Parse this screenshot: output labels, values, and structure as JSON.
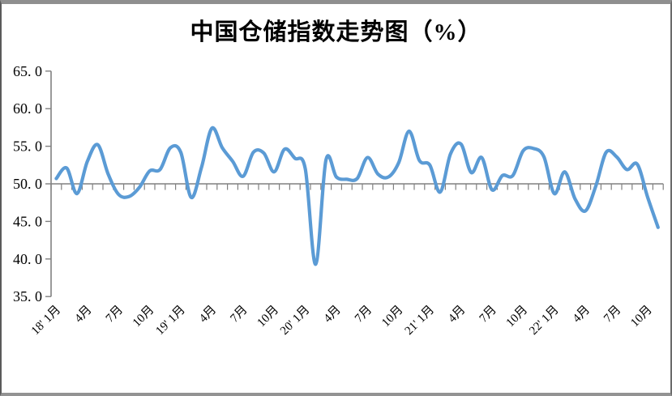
{
  "title": "中国仓储指数走势图（%）",
  "y_axis": {
    "tick_labels": [
      "65. 0",
      "60. 0",
      "55. 0",
      "50. 0",
      "45. 0",
      "40. 0",
      "35. 0"
    ],
    "min": 35,
    "max": 65,
    "step": 5
  },
  "x_axis": {
    "tick_labels": [
      "18' 1月",
      "4月",
      "7月",
      "10月",
      "19' 1月",
      "4月",
      "7月",
      "10月",
      "20' 1月",
      "4月",
      "7月",
      "10月",
      "21' 1月",
      "4月",
      "7月",
      "10月",
      "22' 1月",
      "4月",
      "7月",
      "10月"
    ]
  },
  "colors": {
    "line": "#5B9BD5",
    "axis": "#808080",
    "text": "#000000",
    "frame": "#8f8f8f"
  },
  "chart_data": {
    "type": "line",
    "title": "中国仓储指数走势图（%）",
    "x": [
      "2018-01",
      "2018-02",
      "2018-03",
      "2018-04",
      "2018-05",
      "2018-06",
      "2018-07",
      "2018-08",
      "2018-09",
      "2018-10",
      "2018-11",
      "2018-12",
      "2019-01",
      "2019-02",
      "2019-03",
      "2019-04",
      "2019-05",
      "2019-06",
      "2019-07",
      "2019-08",
      "2019-09",
      "2019-10",
      "2019-11",
      "2019-12",
      "2020-01",
      "2020-02",
      "2020-03",
      "2020-04",
      "2020-05",
      "2020-06",
      "2020-07",
      "2020-08",
      "2020-09",
      "2020-10",
      "2020-11",
      "2020-12",
      "2021-01",
      "2021-02",
      "2021-03",
      "2021-04",
      "2021-05",
      "2021-06",
      "2021-07",
      "2021-08",
      "2021-09",
      "2021-10",
      "2021-11",
      "2021-12",
      "2022-01",
      "2022-02",
      "2022-03",
      "2022-04",
      "2022-05",
      "2022-06",
      "2022-07",
      "2022-08",
      "2022-09",
      "2022-10",
      "2022-11"
    ],
    "values": [
      50.7,
      52.1,
      48.7,
      53.0,
      55.2,
      51.3,
      48.6,
      48.3,
      49.5,
      51.7,
      51.9,
      54.8,
      54.2,
      48.2,
      52.2,
      57.4,
      54.8,
      53.0,
      51.0,
      54.2,
      54.1,
      51.6,
      54.6,
      53.4,
      52.0,
      39.3,
      53.2,
      50.9,
      50.6,
      50.7,
      53.5,
      51.3,
      50.9,
      52.8,
      57.0,
      53.1,
      52.5,
      48.9,
      54.0,
      55.3,
      51.5,
      53.5,
      49.2,
      51.1,
      51.1,
      54.4,
      54.7,
      53.6,
      48.7,
      51.6,
      48.0,
      46.4,
      49.7,
      54.2,
      53.6,
      51.9,
      52.6,
      48.2,
      44.2
    ],
    "ylim": [
      35,
      65
    ],
    "xlabel": "",
    "ylabel": "",
    "grid": false,
    "legend": false,
    "axis_crosses_at": 50,
    "smooth": true
  }
}
